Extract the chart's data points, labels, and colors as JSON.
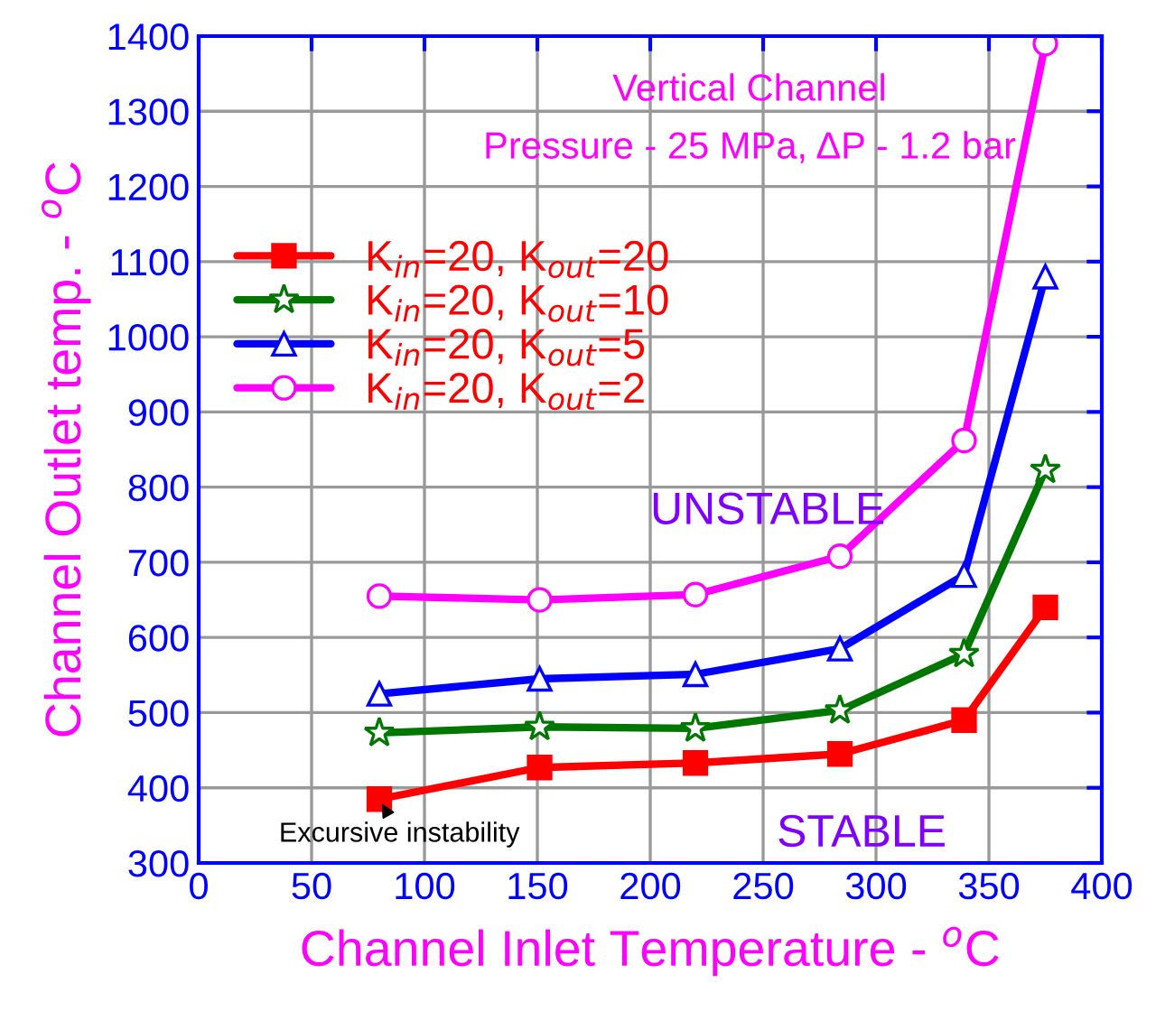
{
  "chart_data": {
    "type": "line",
    "title": "Vertical Channel",
    "subtitle": "Pressure - 25 MPa, ΔP - 1.2 bar",
    "xlabel": "Channel Inlet Temperature - $^{o}$C",
    "ylabel": "Channel Outlet temp. - $^{o}$C",
    "x": [
      80,
      151,
      220,
      284,
      339,
      375
    ],
    "series": [
      {
        "name": "K$_{in}$=20, K$_{out}$=20",
        "color": "#ff0000",
        "marker": "square",
        "values": [
          385,
          427,
          433,
          445,
          490,
          640
        ]
      },
      {
        "name": "K$_{in}$=20, K$_{out}$=10",
        "color": "#007700",
        "marker": "star",
        "values": [
          473,
          481,
          479,
          503,
          578,
          823
        ]
      },
      {
        "name": "K$_{in}$=20, K$_{out}$=5",
        "color": "#0000ff",
        "marker": "triangle",
        "values": [
          525,
          545,
          551,
          585,
          683,
          1080
        ]
      },
      {
        "name": "K$_{in}$=20, K$_{out}$=2",
        "color": "#ff00ff",
        "marker": "circle",
        "values": [
          655,
          650,
          657,
          708,
          862,
          1390
        ]
      }
    ],
    "annotations": [
      "UNSTABLE",
      "STABLE",
      {
        "text": "Excursive instability",
        "x": 80,
        "y": 385
      }
    ],
    "xlim": [
      0,
      400
    ],
    "xticks": [
      0,
      50,
      100,
      150,
      200,
      250,
      300,
      350,
      400
    ],
    "ylim": [
      300,
      1400
    ],
    "yticks": [
      300,
      400,
      500,
      600,
      700,
      800,
      900,
      1000,
      1100,
      1200,
      1300,
      1400
    ],
    "grid": true,
    "legend": "top left",
    "line_style": "solid"
  }
}
